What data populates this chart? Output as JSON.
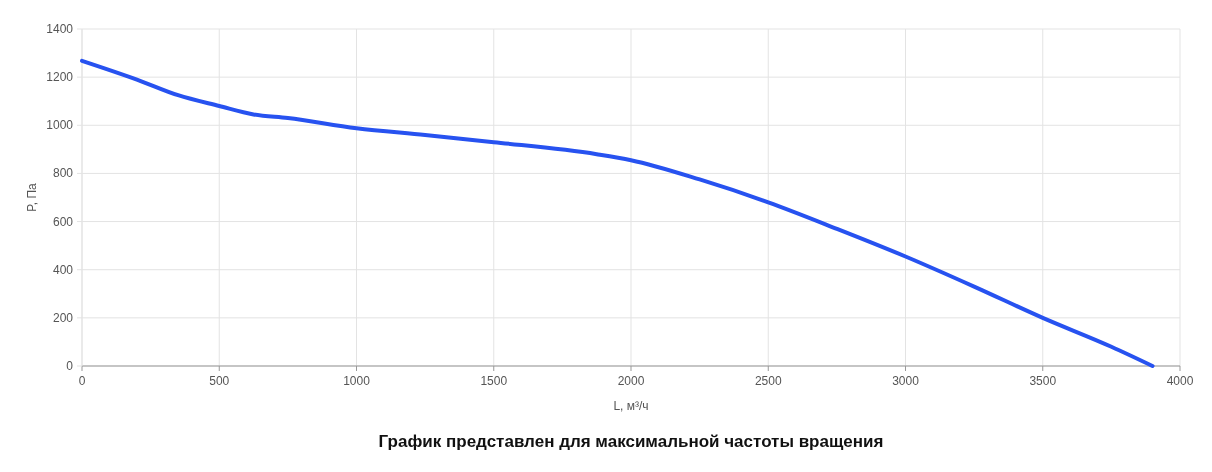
{
  "chart_data": {
    "type": "line",
    "xlabel": "L, м³/ч",
    "ylabel": "P, Па",
    "x": [
      0,
      200,
      350,
      500,
      625,
      750,
      1000,
      1250,
      1500,
      1875,
      2000,
      2250,
      2500,
      2750,
      3000,
      3250,
      3500,
      3750,
      3900
    ],
    "series": [
      {
        "color": "#2752f0",
        "values": [
          1268,
          1190,
          1125,
          1080,
          1045,
          1030,
          988,
          960,
          930,
          880,
          855,
          775,
          680,
          570,
          455,
          330,
          200,
          80,
          0
        ]
      }
    ],
    "xlim": [
      0,
      4000
    ],
    "xticks": [
      0,
      500,
      1000,
      1500,
      2000,
      2500,
      3000,
      3500,
      4000
    ],
    "ylim": [
      0,
      1400
    ],
    "yticks": [
      0,
      200,
      400,
      600,
      800,
      1000,
      1200,
      1400
    ],
    "grid": true,
    "marker": "none",
    "line_style": "solid",
    "annotations": [
      "График представлен для максимальной частоты вращения"
    ]
  }
}
